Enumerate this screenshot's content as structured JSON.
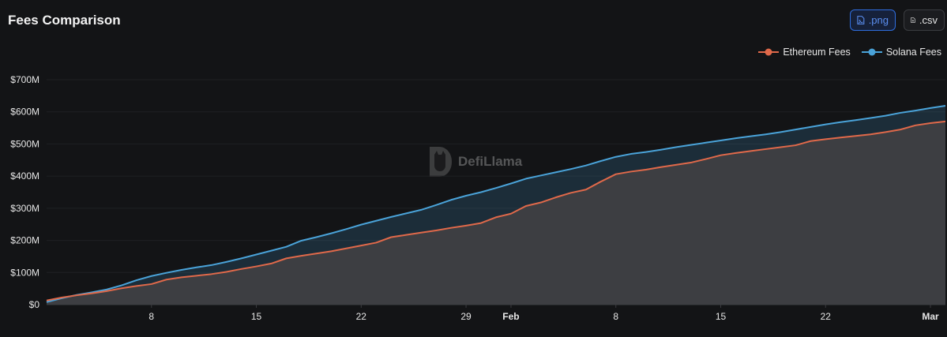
{
  "header": {
    "title": "Fees Comparison",
    "png_label": ".png",
    "csv_label": ".csv"
  },
  "watermark": {
    "text": "DefiLlama"
  },
  "chart_data": {
    "type": "area",
    "title": "Fees Comparison",
    "xlabel": "",
    "ylabel": "",
    "ylim": [
      0,
      700
    ],
    "y_unit": "$M",
    "y_ticks": [
      "$0",
      "$100M",
      "$200M",
      "$300M",
      "$400M",
      "$500M",
      "$600M",
      "$700M"
    ],
    "x_ticks": [
      {
        "day": 8,
        "label": "8"
      },
      {
        "day": 15,
        "label": "15"
      },
      {
        "day": 22,
        "label": "22"
      },
      {
        "day": 29,
        "label": "29"
      },
      {
        "day": 32,
        "label": "Feb"
      },
      {
        "day": 39,
        "label": "8"
      },
      {
        "day": 46,
        "label": "15"
      },
      {
        "day": 53,
        "label": "22"
      },
      {
        "day": 60,
        "label": "Mar"
      }
    ],
    "xlim": [
      1,
      61
    ],
    "legend_position": "top-right",
    "grid": true,
    "series": [
      {
        "name": "Ethereum Fees",
        "color": "#e0694a",
        "values": [
          13,
          22,
          29,
          35,
          42,
          51,
          58,
          64,
          78,
          85,
          90,
          95,
          102,
          111,
          119,
          128,
          144,
          152,
          159,
          166,
          175,
          184,
          193,
          210,
          217,
          224,
          231,
          239,
          246,
          254,
          272,
          283,
          307,
          318,
          334,
          348,
          358,
          383,
          406,
          414,
          420,
          428,
          435,
          442,
          453,
          465,
          472,
          478,
          484,
          490,
          496,
          509,
          515,
          520,
          525,
          530,
          537,
          545,
          558,
          565,
          570
        ]
      },
      {
        "name": "Solana Fees",
        "color": "#4aa3d9",
        "values": [
          8,
          20,
          30,
          38,
          47,
          60,
          76,
          89,
          99,
          108,
          116,
          123,
          133,
          144,
          156,
          168,
          180,
          199,
          210,
          222,
          235,
          249,
          261,
          273,
          284,
          295,
          310,
          326,
          339,
          350,
          363,
          377,
          392,
          402,
          412,
          422,
          433,
          447,
          460,
          469,
          475,
          482,
          490,
          497,
          504,
          511,
          518,
          524,
          530,
          537,
          545,
          553,
          561,
          568,
          574,
          581,
          588,
          597,
          604,
          612,
          619
        ]
      }
    ]
  }
}
